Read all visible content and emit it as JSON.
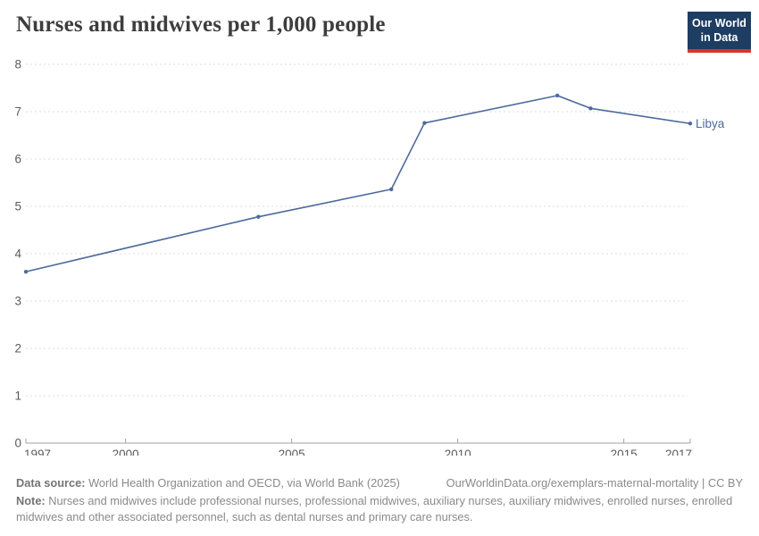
{
  "header": {
    "title": "Nurses and midwives per 1,000 people",
    "logo": {
      "line1": "Our World",
      "line2": "in Data"
    }
  },
  "chart_data": {
    "type": "line",
    "title": "Nurses and midwives per 1,000 people",
    "xlabel": "",
    "ylabel": "",
    "xlim": [
      1997,
      2017
    ],
    "ylim": [
      0,
      8
    ],
    "x_ticks": [
      1997,
      2000,
      2005,
      2010,
      2015,
      2017
    ],
    "y_ticks": [
      0,
      1,
      2,
      3,
      4,
      5,
      6,
      7,
      8
    ],
    "grid": "horizontal-dashed",
    "legend_position": "end-of-line",
    "series": [
      {
        "name": "Libya",
        "color": "#4c6a9c",
        "x": [
          1997,
          2004,
          2008,
          2009,
          2013,
          2014,
          2017
        ],
        "values": [
          3.62,
          4.78,
          5.36,
          6.76,
          7.34,
          7.07,
          6.75
        ]
      }
    ]
  },
  "colors": {
    "line": "#4c6a9c",
    "gridline": "#dcdcdc",
    "axis": "#a3a3a3",
    "tick_label": "#5b5b5b",
    "title": "#3d3d3d",
    "footer_text": "#8a8a8a",
    "logo_bg": "#1d3d63",
    "logo_underline": "#d8352a"
  },
  "footer": {
    "source_label": "Data source:",
    "source_text": " World Health Organization and OECD, via World Bank (2025)",
    "credit": "OurWorldinData.org/exemplars-maternal-mortality | CC BY",
    "note_label": "Note:",
    "note_text": " Nurses and midwives include professional nurses, professional midwives, auxiliary nurses, auxiliary midwives, enrolled nurses, enrolled midwives and other associated personnel, such as dental nurses and primary care nurses."
  }
}
